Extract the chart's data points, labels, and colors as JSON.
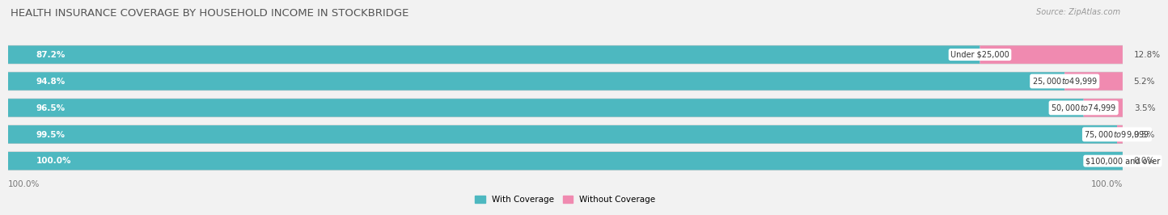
{
  "title": "HEALTH INSURANCE COVERAGE BY HOUSEHOLD INCOME IN STOCKBRIDGE",
  "source": "Source: ZipAtlas.com",
  "categories": [
    "Under $25,000",
    "$25,000 to $49,999",
    "$50,000 to $74,999",
    "$75,000 to $99,999",
    "$100,000 and over"
  ],
  "with_coverage": [
    87.2,
    94.8,
    96.5,
    99.5,
    100.0
  ],
  "without_coverage": [
    12.8,
    5.2,
    3.5,
    0.5,
    0.0
  ],
  "color_coverage": "#4db8c0",
  "color_without": "#f08ab0",
  "background_color": "#f2f2f2",
  "row_bg": "#e8e8e8",
  "row_border": "#d0d0d0",
  "bar_height": 0.68,
  "x_left_label": "100.0%",
  "x_right_label": "100.0%",
  "legend_coverage": "With Coverage",
  "legend_without": "Without Coverage",
  "title_fontsize": 9.5,
  "label_fontsize": 7.5,
  "tick_fontsize": 7.5,
  "source_fontsize": 7
}
